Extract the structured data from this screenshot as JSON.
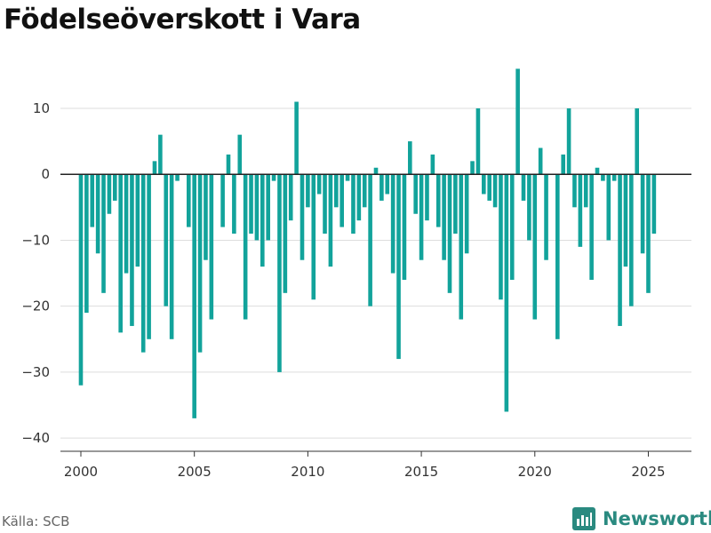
{
  "title": "Födelseöverskott i Vara",
  "source": "Källa: SCB",
  "brand": "Newsworthy",
  "colors": {
    "bar": "#12a39b",
    "grid": "#dddddd",
    "axis": "#333333",
    "brand": "#2a8a80"
  },
  "chart_data": {
    "type": "bar",
    "title": "Födelseöverskott i Vara",
    "xlabel": "",
    "ylabel": "",
    "frequency": "quarterly",
    "x_start": 2000.0,
    "ylim": [
      -42,
      17
    ],
    "xlim": [
      1999.1,
      2026.9
    ],
    "yticks": [
      10,
      0,
      -10,
      -20,
      -30,
      -40
    ],
    "yticklabels": [
      "10",
      "0",
      "−10",
      "−20",
      "−30",
      "−40"
    ],
    "xticks": [
      2000,
      2005,
      2010,
      2015,
      2020,
      2025
    ],
    "xticklabels": [
      "2000",
      "2005",
      "2010",
      "2015",
      "2020",
      "2025"
    ],
    "grid": true,
    "values": [
      -32,
      -21,
      -8,
      -12,
      -18,
      -6,
      -4,
      -24,
      -15,
      -23,
      -14,
      -27,
      -25,
      2,
      6,
      -20,
      -25,
      -1,
      0,
      -8,
      -37,
      -27,
      -13,
      -22,
      0,
      -8,
      3,
      -9,
      6,
      -22,
      -9,
      -10,
      -14,
      -10,
      -1,
      -30,
      -18,
      -7,
      11,
      -13,
      -5,
      -19,
      -3,
      -9,
      -14,
      -5,
      -8,
      -1,
      -9,
      -7,
      -5,
      -20,
      1,
      -4,
      -3,
      -15,
      -28,
      -16,
      5,
      -6,
      -13,
      -7,
      3,
      -8,
      -13,
      -18,
      -9,
      -22,
      -12,
      2,
      10,
      -3,
      -4,
      -5,
      -19,
      -36,
      -16,
      16,
      -4,
      -10,
      -22,
      4,
      -13,
      0,
      -25,
      3,
      10,
      -5,
      -11,
      -5,
      -16,
      1,
      -1,
      -10,
      -1,
      -23,
      -14,
      -20,
      10,
      -12,
      -18,
      -9
    ]
  }
}
